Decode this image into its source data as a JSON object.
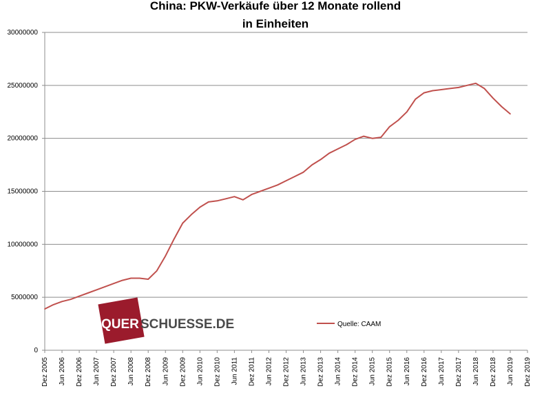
{
  "chart_data": {
    "type": "line",
    "title": "China: PKW-Verkäufe  über 12 Monate rollend",
    "subtitle": "in Einheiten",
    "xlabel": "",
    "ylabel": "",
    "ylim": [
      0,
      30000000
    ],
    "xlim": [
      "Dez 2005",
      "Dez 2019"
    ],
    "grid": true,
    "legend_position": "lower-right",
    "y_ticks": [
      "0",
      "5000000",
      "10000000",
      "15000000",
      "20000000",
      "25000000",
      "30000000"
    ],
    "x_ticks": [
      "Dez 2005",
      "Jun 2006",
      "Dez 2006",
      "Jun 2007",
      "Dez 2007",
      "Jun 2008",
      "Dez 2008",
      "Jun 2009",
      "Dez 2009",
      "Jun 2010",
      "Dez 2010",
      "Jun 2011",
      "Dez 2011",
      "Jun 2012",
      "Dez 2012",
      "Jun 2013",
      "Dez 2013",
      "Jun 2014",
      "Dez 2014",
      "Jun 2015",
      "Dez 2015",
      "Jun 2016",
      "Dez 2016",
      "Jun 2017",
      "Dez 2017",
      "Jun 2018",
      "Dez 2018",
      "Jun 2019",
      "Dez 2019"
    ],
    "series": [
      {
        "name": "Quelle: CAAM",
        "color": "#c0504d",
        "x": [
          "Dez 2005",
          "Mrz 2006",
          "Jun 2006",
          "Sep 2006",
          "Dez 2006",
          "Mrz 2007",
          "Jun 2007",
          "Sep 2007",
          "Dez 2007",
          "Mrz 2008",
          "Jun 2008",
          "Sep 2008",
          "Dez 2008",
          "Mrz 2009",
          "Jun 2009",
          "Sep 2009",
          "Dez 2009",
          "Mrz 2010",
          "Jun 2010",
          "Sep 2010",
          "Dez 2010",
          "Mrz 2011",
          "Jun 2011",
          "Sep 2011",
          "Dez 2011",
          "Mrz 2012",
          "Jun 2012",
          "Sep 2012",
          "Dez 2012",
          "Mrz 2013",
          "Jun 2013",
          "Sep 2013",
          "Dez 2013",
          "Mrz 2014",
          "Jun 2014",
          "Sep 2014",
          "Dez 2014",
          "Mrz 2015",
          "Jun 2015",
          "Sep 2015",
          "Dez 2015",
          "Mrz 2016",
          "Jun 2016",
          "Sep 2016",
          "Dez 2016",
          "Mrz 2017",
          "Jun 2017",
          "Sep 2017",
          "Dez 2017",
          "Mrz 2018",
          "Jun 2018",
          "Sep 2018",
          "Dez 2018",
          "Mrz 2019",
          "Jun 2019"
        ],
        "values": [
          3900000,
          4300000,
          4600000,
          4800000,
          5100000,
          5400000,
          5700000,
          6000000,
          6300000,
          6600000,
          6800000,
          6800000,
          6700000,
          7500000,
          8900000,
          10500000,
          12000000,
          12800000,
          13500000,
          14000000,
          14100000,
          14300000,
          14500000,
          14200000,
          14700000,
          15000000,
          15300000,
          15600000,
          16000000,
          16400000,
          16800000,
          17500000,
          18000000,
          18600000,
          19000000,
          19400000,
          19900000,
          20200000,
          20000000,
          20100000,
          21100000,
          21700000,
          22500000,
          23700000,
          24300000,
          24500000,
          24600000,
          24700000,
          24800000,
          25000000,
          25200000,
          24700000,
          23800000,
          23000000,
          22300000
        ]
      }
    ]
  },
  "watermark": {
    "text_part1": "QUER",
    "text_part2": "SCHUESSE.DE",
    "badge_color": "#9b1b2c",
    "text_color": "#ffffff",
    "text2_color": "#4a4a4a"
  }
}
